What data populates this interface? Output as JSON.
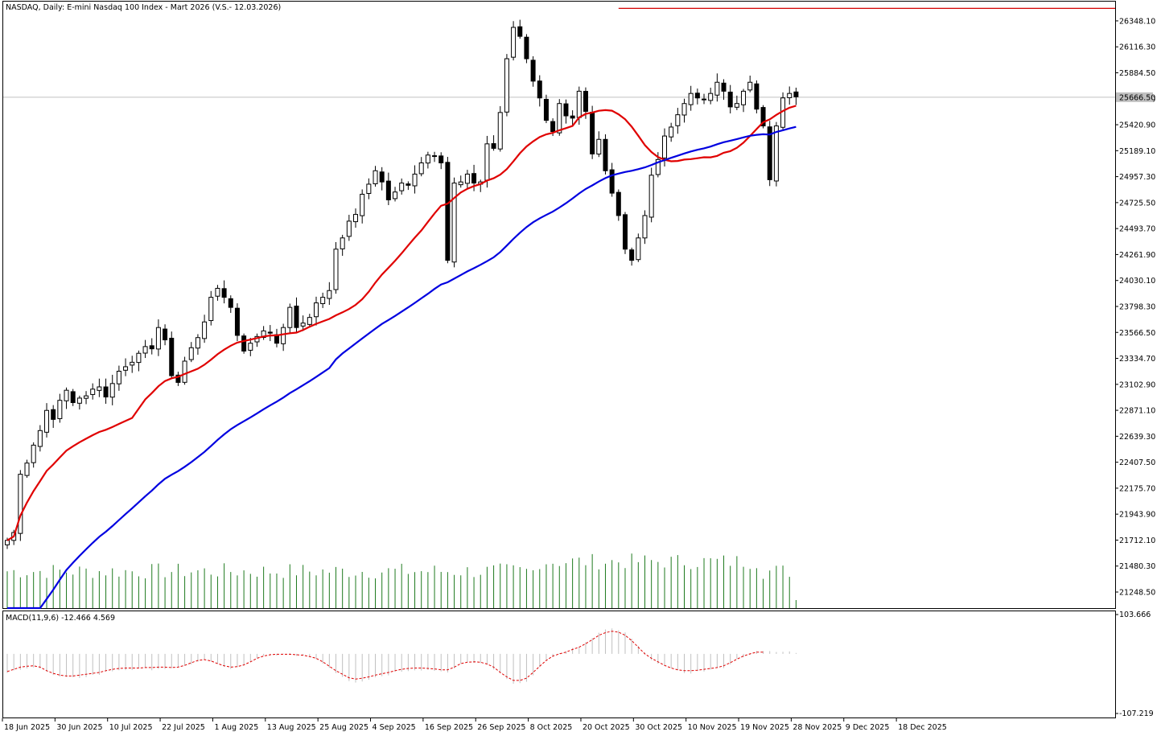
{
  "chart_data": [
    {
      "type": "candlestick",
      "title": "NASDAQ, Daily:  E-mini Nasdaq 100 Index - Mart 2026 (V.S.- 12.03.2026)",
      "price_axis_ticks": [
        "26348.10",
        "26116.30",
        "25884.50",
        "25652.70",
        "25420.90",
        "25189.10",
        "24957.30",
        "24725.50",
        "24493.70",
        "24261.90",
        "24030.10",
        "23798.30",
        "23566.50",
        "23334.70",
        "23102.90",
        "22871.10",
        "22639.30",
        "22407.50",
        "22175.70",
        "21943.90",
        "21712.10",
        "21480.30",
        "21248.50"
      ],
      "ylim": [
        21105,
        26520
      ],
      "current_price_label": "25666.50",
      "current_price": 25666.5,
      "high_line": 26460,
      "date_labels": [
        "18 Jun 2025",
        "30 Jun 2025",
        "10 Jul 2025",
        "22 Jul 2025",
        "1 Aug 2025",
        "13 Aug 2025",
        "25 Aug 2025",
        "4 Sep 2025",
        "16 Sep 2025",
        "26 Sep 2025",
        "8 Oct 2025",
        "20 Oct 2025",
        "30 Oct 2025",
        "10 Nov 2025",
        "19 Nov 2025",
        "28 Nov 2025",
        "9 Dec 2025",
        "18 Dec 2025"
      ],
      "date_label_bar_index": [
        0,
        8,
        16,
        24,
        32,
        40,
        48,
        56,
        64,
        72,
        80,
        88,
        96,
        104,
        112,
        120,
        128,
        136
      ],
      "closes": [
        21710,
        21780,
        22300,
        22400,
        22560,
        22690,
        22870,
        22790,
        22960,
        23050,
        22940,
        22980,
        23000,
        23060,
        23080,
        22990,
        23110,
        23220,
        23260,
        23300,
        23380,
        23440,
        23420,
        23610,
        23500,
        23180,
        23120,
        23310,
        23430,
        23520,
        23660,
        23880,
        23960,
        23880,
        23790,
        23540,
        23400,
        23470,
        23530,
        23580,
        23560,
        23470,
        23610,
        23790,
        23610,
        23650,
        23700,
        23830,
        23880,
        23940,
        24310,
        24410,
        24560,
        24620,
        24800,
        24890,
        25010,
        24910,
        24750,
        24820,
        24900,
        24880,
        24980,
        25080,
        25150,
        25140,
        25080,
        24210,
        24900,
        24910,
        24980,
        24900,
        24910,
        25250,
        25210,
        25530,
        26010,
        26290,
        26210,
        26010,
        25810,
        25660,
        25460,
        25360,
        25610,
        25500,
        25480,
        25720,
        25540,
        25160,
        25290,
        25010,
        24810,
        24610,
        24310,
        24210,
        24410,
        24610,
        24970,
        25110,
        25320,
        25400,
        25510,
        25610,
        25700,
        25660,
        25650,
        25700,
        25800,
        25720,
        25580,
        25610,
        25720,
        25800,
        25560,
        25410,
        24930,
        25410,
        25660,
        25700,
        25670
      ],
      "legend_entries": [
        {
          "name": "MACD(11,9,6) -12.466 4.569"
        }
      ],
      "macd_axis_ticks": [
        "103.666",
        "-107.219"
      ],
      "macd_ylim": [
        -107.219,
        103.666
      ],
      "signal_values": [
        -40,
        -35,
        -30,
        -28,
        -27,
        -30,
        -38,
        -44,
        -48,
        -50,
        -50,
        -48,
        -46,
        -44,
        -42,
        -38,
        -35,
        -33,
        -32,
        -32,
        -32,
        -31,
        -31,
        -30,
        -30,
        -31,
        -30,
        -26,
        -20,
        -15,
        -13,
        -16,
        -22,
        -27,
        -30,
        -29,
        -25,
        -18,
        -10,
        -5,
        -2,
        -1,
        -1,
        -1,
        -2,
        -3,
        -6,
        -10,
        -18,
        -28,
        -38,
        -46,
        -54,
        -57,
        -55,
        -52,
        -48,
        -45,
        -42,
        -38,
        -35,
        -33,
        -32,
        -32,
        -33,
        -34,
        -36,
        -36,
        -30,
        -22,
        -19,
        -18,
        -19,
        -23,
        -30,
        -42,
        -52,
        -60,
        -60,
        -55,
        -42,
        -28,
        -15,
        -5,
        0,
        4,
        10,
        15,
        23,
        32,
        42,
        48,
        51,
        49,
        42,
        30,
        15,
        0,
        -10,
        -18,
        -26,
        -32,
        -36,
        -38,
        -38,
        -37,
        -35,
        -33,
        -31,
        -27,
        -20,
        -12,
        -5,
        0,
        4,
        4
      ]
    }
  ]
}
